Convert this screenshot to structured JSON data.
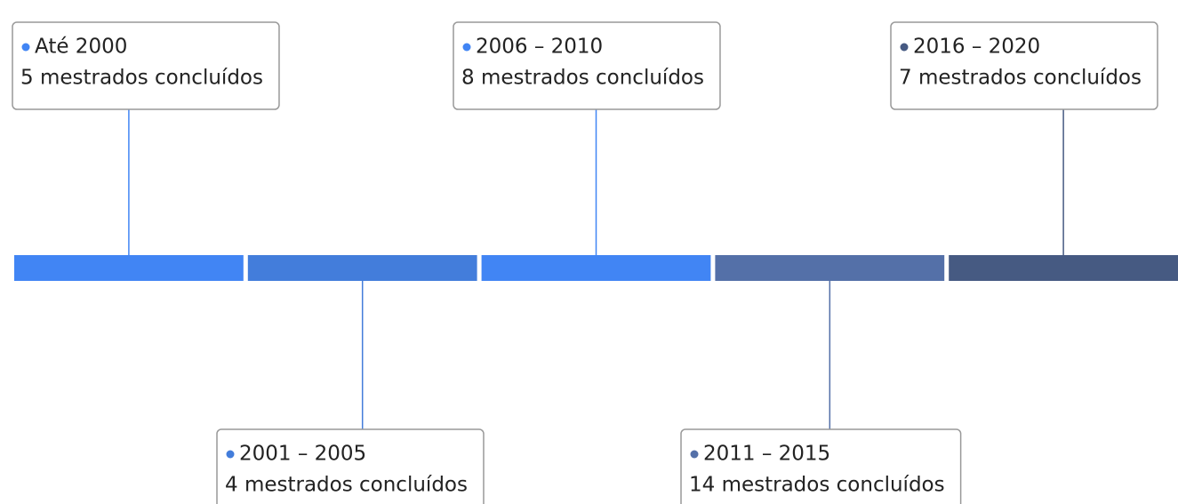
{
  "chart_data": {
    "type": "timeline",
    "events": [
      {
        "name": "Até 2000",
        "description": "5 mestrados concluídos",
        "color": "#4185f4"
      },
      {
        "name": "2001 – 2005",
        "description": "4 mestrados concluídos",
        "color": "#437ddb"
      },
      {
        "name": "2006 – 2010",
        "description": "8 mestrados concluídos",
        "color": "#4185f4"
      },
      {
        "name": "2011 – 2015",
        "description": "14 mestrados concluídos",
        "color": "#5470a8"
      },
      {
        "name": "2016 – 2020",
        "description": "7 mestrados concluídos",
        "color": "#465a82"
      }
    ]
  }
}
